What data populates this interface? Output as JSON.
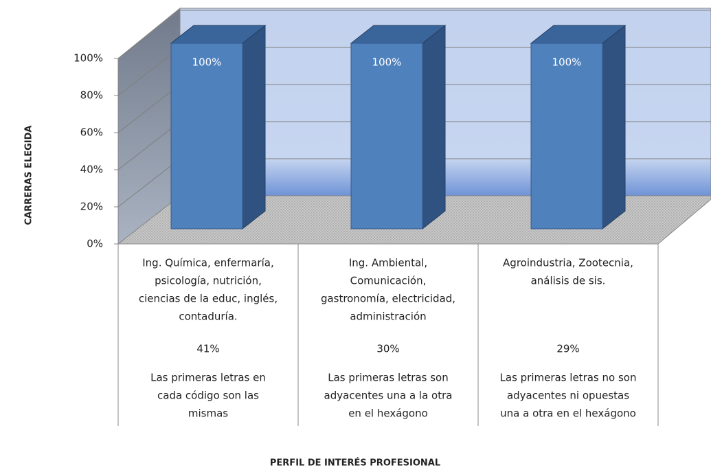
{
  "chart_data": {
    "type": "bar3d",
    "y_axis_label": "CARRERAS  ELEGIDA",
    "x_axis_label": "PERFIL DE INTERÉS PROFESIONAL",
    "values": [
      100,
      100,
      100
    ],
    "value_labels": [
      "100%",
      "100%",
      "100%"
    ],
    "color": "#4f81bd",
    "ylim": [
      0,
      100
    ],
    "yticks": [
      {
        "value": 0,
        "label": "0%"
      },
      {
        "value": 20,
        "label": "20%"
      },
      {
        "value": 40,
        "label": "40%"
      },
      {
        "value": 60,
        "label": "60%"
      },
      {
        "value": 80,
        "label": "80%"
      },
      {
        "value": 100,
        "label": "100%"
      }
    ],
    "grid": true,
    "category_table": [
      {
        "careers": [
          "Ing. Química, enfermaría,",
          "psicología, nutrición,",
          "ciencias de la educ, inglés,",
          "contaduría."
        ],
        "share": "41%",
        "description": [
          "Las primeras letras en",
          "cada código son las",
          "mismas"
        ]
      },
      {
        "careers": [
          "Ing. Ambiental,",
          "Comunicación,",
          "gastronomía,  electricidad,",
          "administración"
        ],
        "share": "30%",
        "description": [
          "Las primeras letras son",
          "adyacentes una a la otra",
          "en el hexágono"
        ]
      },
      {
        "careers": [
          "Agroindustria, Zootecnia,",
          "análisis de sis."
        ],
        "share": "29%",
        "description": [
          "Las primeras letras no son",
          "adyacentes  ni opuestas",
          "una a otra en el hexágono"
        ]
      }
    ]
  }
}
